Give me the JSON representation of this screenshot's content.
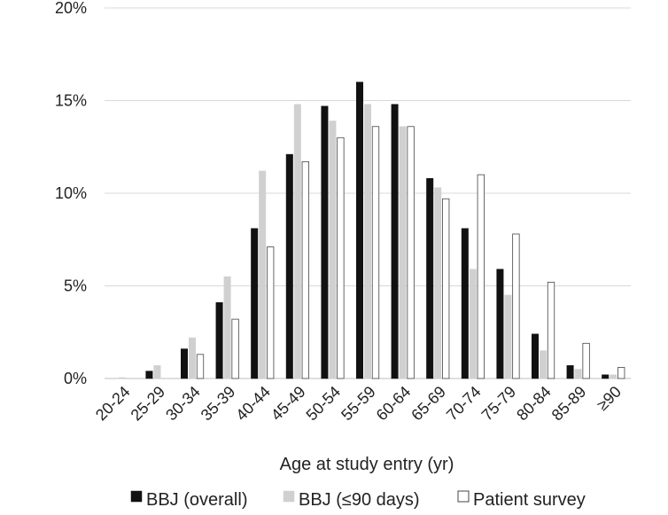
{
  "chart_data": {
    "type": "bar",
    "title": "",
    "xlabel": "Age at study entry (yr)",
    "ylabel": "",
    "ylim": [
      0,
      20
    ],
    "y_ticks": [
      "0%",
      "5%",
      "10%",
      "15%",
      "20%"
    ],
    "y_tick_values": [
      0,
      5,
      10,
      15,
      20
    ],
    "grid": "horizontal",
    "legend_position": "bottom",
    "categories": [
      "20-24",
      "25-29",
      "30-34",
      "35-39",
      "40-44",
      "45-49",
      "50-54",
      "55-59",
      "60-64",
      "65-69",
      "70-74",
      "75-79",
      "80-84",
      "85-89",
      "≥90"
    ],
    "series": [
      {
        "name": "BBJ (overall)",
        "color": "#111111",
        "border": "#111111",
        "values": [
          0,
          0.4,
          1.6,
          4.1,
          8.1,
          12.1,
          14.7,
          16.0,
          14.8,
          10.8,
          8.1,
          5.9,
          2.4,
          0.7,
          0.2
        ]
      },
      {
        "name": "BBJ (≤90 days)",
        "color": "#d0d0d0",
        "border": "#d0d0d0",
        "values": [
          0.05,
          0.7,
          2.2,
          5.5,
          11.2,
          14.8,
          13.9,
          14.8,
          13.6,
          10.3,
          5.9,
          4.5,
          1.5,
          0.5,
          0.2
        ]
      },
      {
        "name": "Patient survey",
        "color": "#ffffff",
        "border": "#444444",
        "values": [
          0,
          0,
          1.3,
          3.2,
          7.1,
          11.7,
          13.0,
          13.6,
          13.6,
          9.7,
          11.0,
          7.8,
          5.2,
          1.9,
          0.6
        ]
      }
    ]
  }
}
